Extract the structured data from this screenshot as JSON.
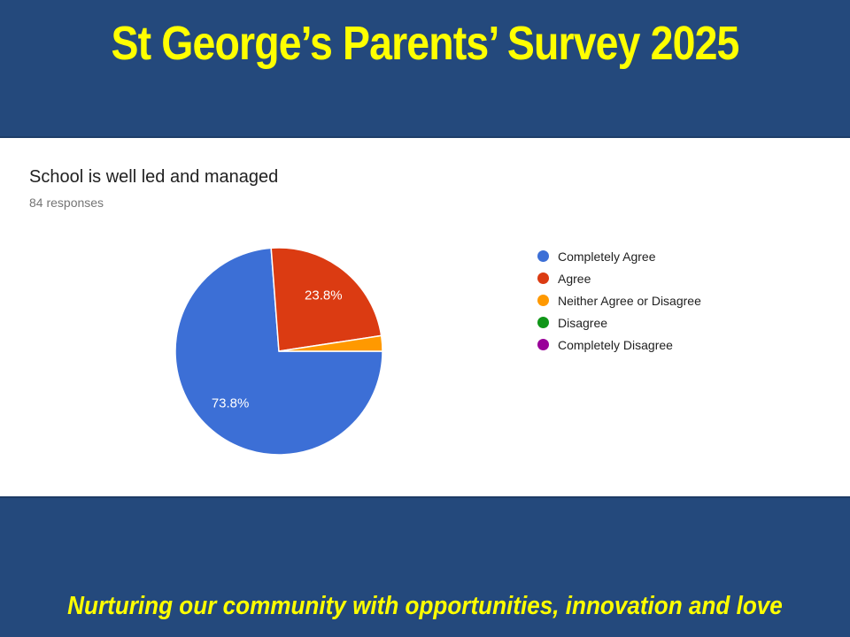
{
  "slide": {
    "title": "St George’s Parents’ Survey 2025",
    "tagline": "Nurturing our community with opportunities, innovation and love",
    "colors": {
      "band_blue": "#24497C",
      "accent_yellow": "#FFFF00",
      "content_background": "#FFFFFF"
    }
  },
  "chart": {
    "title": "School is well led and managed",
    "responses": "84 responses"
  },
  "chart_data": {
    "type": "pie",
    "title": "School is well led and managed",
    "subtitle": "84 responses",
    "legend_position": "right",
    "start_angle_clockwise_from_top_deg": 90,
    "categories": [
      "Completely Agree",
      "Agree",
      "Neither Agree or Disagree",
      "Disagree",
      "Completely Disagree"
    ],
    "values_percent": [
      73.8,
      23.8,
      2.4,
      0,
      0
    ],
    "slice_labels": [
      "73.8%",
      "23.8%",
      "",
      "",
      ""
    ],
    "colors": [
      "#3C6FD6",
      "#DB3B12",
      "#FF9900",
      "#109618",
      "#990099"
    ],
    "label_color": "#FFFFFF"
  }
}
